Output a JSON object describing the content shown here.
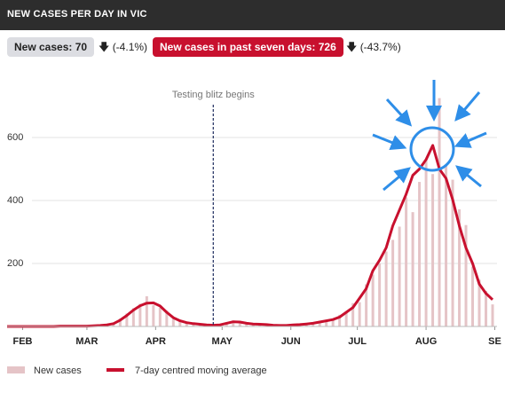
{
  "chart_data": {
    "type": "bar-line",
    "title": "NEW CASES PER DAY IN VIC",
    "stats": [
      {
        "label": "New cases: 70",
        "change": "(-4.1%)"
      },
      {
        "label": "New cases in past seven days: 726",
        "change": "(-43.7%)"
      }
    ],
    "x": [
      -7,
      -4,
      -1,
      2,
      5,
      8,
      11,
      14,
      17,
      20,
      23,
      26,
      29,
      32,
      35,
      38,
      41,
      44,
      47,
      50,
      53,
      56,
      59,
      62,
      65,
      68,
      71,
      74,
      77,
      80,
      83,
      86,
      89,
      92,
      95,
      98,
      101,
      104,
      107,
      110,
      113,
      116,
      119,
      122,
      125,
      128,
      131,
      134,
      137,
      140,
      143,
      146,
      149,
      152,
      155,
      158,
      161,
      164,
      167,
      170,
      173,
      176,
      179,
      182,
      185,
      188,
      191,
      194,
      197,
      200,
      203,
      206,
      209,
      212
    ],
    "series": [
      {
        "name": "New cases",
        "type": "bar",
        "color": "#e5c4c7",
        "values": [
          0,
          0,
          0,
          0,
          0,
          0,
          0,
          0,
          1,
          0,
          2,
          1,
          1,
          3,
          2,
          6,
          11,
          25,
          41,
          58,
          72,
          96,
          68,
          60,
          50,
          24,
          20,
          13,
          8,
          9,
          5,
          3,
          6,
          13,
          19,
          12,
          11,
          7,
          9,
          5,
          4,
          3,
          2,
          7,
          5,
          10,
          9,
          17,
          20,
          25,
          37,
          48,
          74,
          77,
          134,
          165,
          200,
          238,
          275,
          317,
          410,
          363,
          459,
          532,
          484,
          725,
          510,
          466,
          372,
          322,
          190,
          149,
          113,
          70
        ]
      },
      {
        "name": "7-day centred moving average",
        "type": "line",
        "color": "#c8102e",
        "values": [
          0,
          0,
          0,
          0,
          0,
          0,
          0,
          0,
          1,
          1,
          1,
          1,
          1,
          2,
          3,
          5,
          9,
          20,
          35,
          52,
          66,
          74,
          75,
          65,
          45,
          28,
          18,
          12,
          9,
          7,
          5,
          4,
          5,
          10,
          15,
          14,
          10,
          8,
          7,
          6,
          4,
          3,
          3,
          5,
          6,
          8,
          10,
          14,
          18,
          22,
          30,
          45,
          60,
          90,
          120,
          177,
          210,
          250,
          320,
          370,
          420,
          480,
          500,
          530,
          575,
          500,
          470,
          403,
          320,
          250,
          200,
          135,
          105,
          85
        ]
      }
    ],
    "xlim": [
      -7,
      214
    ],
    "xticks": [
      {
        "value": 0,
        "label": "FEB"
      },
      {
        "value": 29,
        "label": "MAR"
      },
      {
        "value": 60,
        "label": "APR"
      },
      {
        "value": 90,
        "label": "MAY"
      },
      {
        "value": 121,
        "label": "JUN"
      },
      {
        "value": 151,
        "label": "JUL"
      },
      {
        "value": 182,
        "label": "AUG"
      },
      {
        "value": 213,
        "label": "SE"
      }
    ],
    "ylim": [
      0,
      800
    ],
    "yticks": [
      200,
      400,
      600
    ],
    "grid": true,
    "annotations": [
      {
        "x": 86,
        "text": "Testing blitz begins"
      }
    ]
  }
}
